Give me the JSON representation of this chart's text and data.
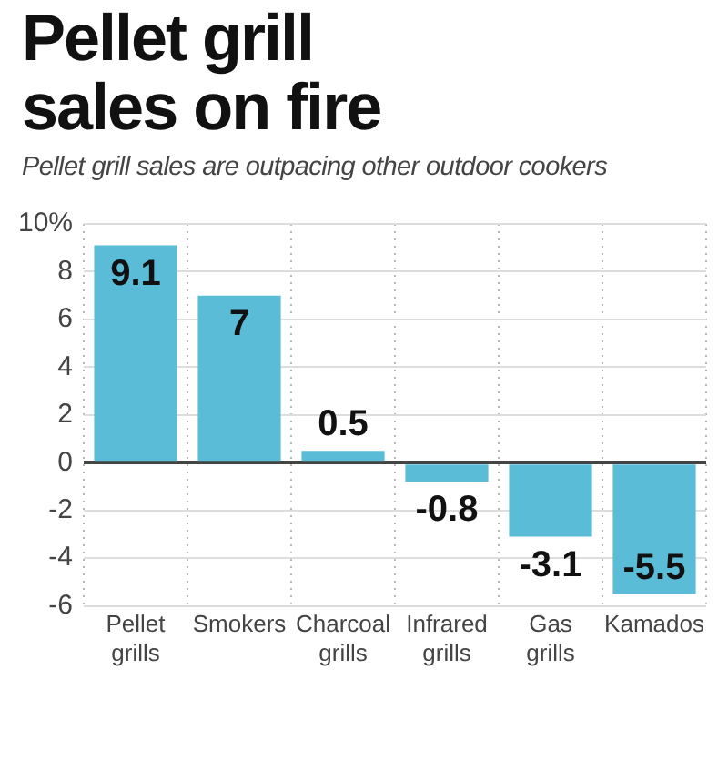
{
  "chart_data": {
    "type": "bar",
    "title": "Pellet grill sales on fire",
    "subtitle": "Pellet grill sales are outpacing other outdoor cookers",
    "categories": [
      "Pellet grills",
      "Smokers",
      "Charcoal grills",
      "Infrared grills",
      "Gas grills",
      "Kamados"
    ],
    "values": [
      9.1,
      7,
      0.5,
      -0.8,
      -3.1,
      -5.5
    ],
    "color": "#5bbcd8",
    "ylim": [
      -6,
      10
    ],
    "yticks": [
      -6,
      -4,
      -2,
      0,
      2,
      4,
      6,
      8,
      {
        "value": 10,
        "label": "10%"
      }
    ],
    "grid": true,
    "data_labels": true
  }
}
